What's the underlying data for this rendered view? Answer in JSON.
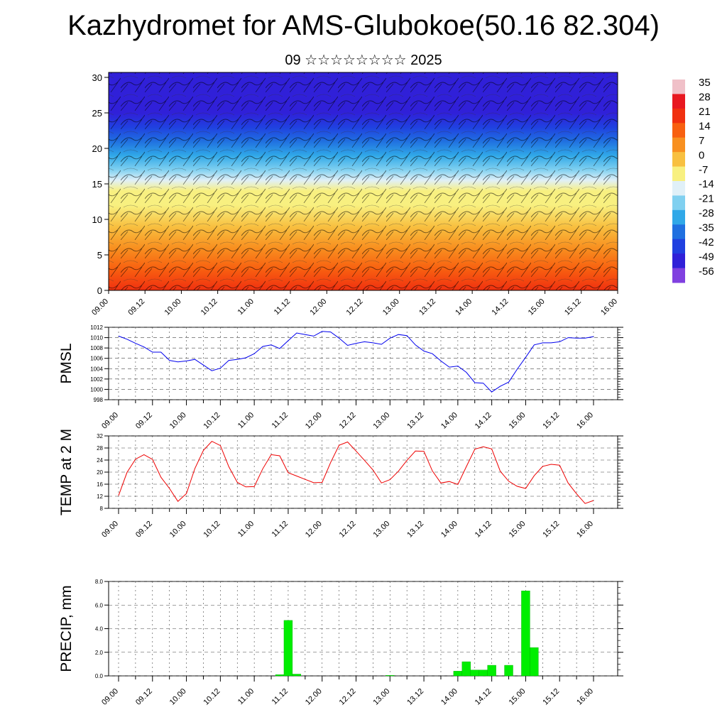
{
  "title": "Kazhydromet for AMS-Glubokoe(50.16 82.304)",
  "subtitle": "09 ☆☆☆☆☆☆☆☆ 2025",
  "chart_data": [
    {
      "type": "heatmap",
      "time_ticks": [
        "09.00",
        "09.12",
        "10.00",
        "10.12",
        "11.00",
        "11.12",
        "12.00",
        "12.12",
        "13.00",
        "13.12",
        "14.00",
        "14.12",
        "15.00",
        "15.12",
        "16.00"
      ],
      "y_ticks": [
        0,
        5,
        10,
        15,
        20,
        25,
        30
      ],
      "ylim": [
        0,
        30.7
      ],
      "colorbar": {
        "labels": [
          "35",
          "28",
          "21",
          "14",
          "7",
          "0",
          "-7",
          "-14",
          "-21",
          "-28",
          "-35",
          "-42",
          "-49",
          "-56"
        ],
        "colors": [
          "#f0c0c8",
          "#e81820",
          "#f03010",
          "#f86010",
          "#f89020",
          "#f8c040",
          "#f8f080",
          "#e0f0f8",
          "#80d0f0",
          "#30a8e8",
          "#2070e0",
          "#2040e0",
          "#3020d8",
          "#8040e0"
        ]
      },
      "temperature_profile": {
        "heights": [
          0,
          3,
          6,
          9,
          12,
          14,
          15.5,
          17,
          19,
          21,
          23,
          25,
          27,
          29,
          30.7
        ],
        "values": [
          24,
          18,
          10,
          4,
          -4,
          -10,
          -15,
          -22,
          -32,
          -40,
          -48,
          -54,
          -56,
          -52,
          -50
        ]
      }
    },
    {
      "type": "line",
      "ylabel": "PMSL",
      "x_ticks": [
        "09.00",
        "09.12",
        "10.00",
        "10.12",
        "11.00",
        "11.12",
        "12.00",
        "12.12",
        "13.00",
        "13.12",
        "14.00",
        "14.12",
        "15.00",
        "15.12",
        "16.00"
      ],
      "y_ticks": [
        "998",
        "1000",
        "1002",
        "1004",
        "1006",
        "1008",
        "1010",
        "1012"
      ],
      "ylim": [
        998,
        1012
      ],
      "color": "#0000ee",
      "x_hours": [
        0,
        3,
        6,
        9,
        12,
        15,
        18,
        21,
        24,
        27,
        30,
        33,
        36,
        39,
        42,
        45,
        48,
        51,
        54,
        57,
        60,
        63,
        66,
        69,
        72,
        75,
        78,
        81,
        84,
        87,
        90,
        93,
        96,
        99,
        102,
        105,
        108,
        111,
        114,
        117,
        120,
        123,
        126,
        129,
        132,
        135,
        138,
        141,
        144,
        147,
        150,
        153,
        156,
        159,
        162,
        165,
        168
      ],
      "values": [
        1010.3,
        1009.7,
        1008.9,
        1008.2,
        1007.2,
        1007.2,
        1005.6,
        1005.3,
        1005.5,
        1005.8,
        1004.7,
        1003.6,
        1004.1,
        1005.6,
        1005.8,
        1006.1,
        1006.9,
        1008.3,
        1008.6,
        1007.9,
        1009.4,
        1010.9,
        1010.6,
        1010.3,
        1011.2,
        1011.1,
        1009.9,
        1008.5,
        1008.9,
        1009.2,
        1009.0,
        1008.7,
        1009.9,
        1010.6,
        1010.4,
        1008.6,
        1007.4,
        1006.9,
        1005.5,
        1004.3,
        1004.5,
        1003.3,
        1001.3,
        1001.2,
        999.5,
        1000.6,
        1001.4,
        1003.9,
        1006.2,
        1008.6,
        1009.0,
        1009.0,
        1009.2,
        1010.0,
        1009.9,
        1009.9,
        1010.2
      ]
    },
    {
      "type": "line",
      "ylabel": "TEMP at 2 M",
      "x_ticks": [
        "09.00",
        "09.12",
        "10.00",
        "10.12",
        "11.00",
        "11.12",
        "12.00",
        "12.12",
        "13.00",
        "13.12",
        "14.00",
        "14.12",
        "15.00",
        "15.12",
        "16.00"
      ],
      "y_ticks": [
        "8",
        "12",
        "16",
        "20",
        "24",
        "28",
        "32"
      ],
      "ylim": [
        8,
        32
      ],
      "color": "#ee0000",
      "x_hours": [
        0,
        3,
        6,
        9,
        12,
        15,
        18,
        21,
        24,
        27,
        30,
        33,
        36,
        39,
        42,
        45,
        48,
        51,
        54,
        57,
        60,
        63,
        66,
        69,
        72,
        75,
        78,
        81,
        84,
        87,
        90,
        93,
        96,
        99,
        102,
        105,
        108,
        111,
        114,
        117,
        120,
        123,
        126,
        129,
        132,
        135,
        138,
        141,
        144,
        147,
        150,
        153,
        156,
        159,
        162,
        165,
        168
      ],
      "values": [
        12.2,
        19.9,
        24.3,
        25.8,
        24.2,
        18.3,
        14.6,
        10.3,
        12.9,
        21.2,
        27.2,
        30.2,
        28.8,
        21.8,
        16.6,
        15.1,
        15.2,
        21.1,
        25.8,
        25.4,
        19.8,
        18.7,
        17.6,
        16.5,
        16.6,
        23.2,
        28.9,
        30.0,
        27.0,
        23.9,
        20.7,
        16.4,
        17.5,
        20.3,
        23.9,
        27.0,
        26.9,
        20.4,
        16.4,
        16.9,
        15.9,
        21.8,
        27.6,
        28.4,
        27.7,
        20.3,
        17.0,
        15.3,
        14.6,
        18.8,
        21.9,
        22.6,
        22.3,
        16.4,
        12.8,
        9.6,
        10.6
      ]
    },
    {
      "type": "bar",
      "ylabel": "PRECIP, mm",
      "x_ticks": [
        "09.00",
        "09.12",
        "10.00",
        "10.12",
        "11.00",
        "11.12",
        "12.00",
        "12.12",
        "13.00",
        "13.12",
        "14.00",
        "14.12",
        "15.00",
        "15.12",
        "16.00"
      ],
      "y_ticks": [
        "0.0",
        "2.0",
        "4.0",
        "6.0",
        "8.0"
      ],
      "ylim": [
        0,
        8
      ],
      "color": "#00ee00",
      "bar_hours": [
        57,
        60,
        63,
        96,
        120,
        123,
        126,
        129,
        132,
        135,
        138,
        141,
        144,
        147,
        150
      ],
      "values": [
        0.1,
        4.7,
        0.15,
        0.05,
        0.4,
        1.2,
        0.5,
        0.5,
        0.9,
        0.0,
        0.9,
        0.0,
        7.2,
        2.4,
        0.0
      ]
    }
  ]
}
